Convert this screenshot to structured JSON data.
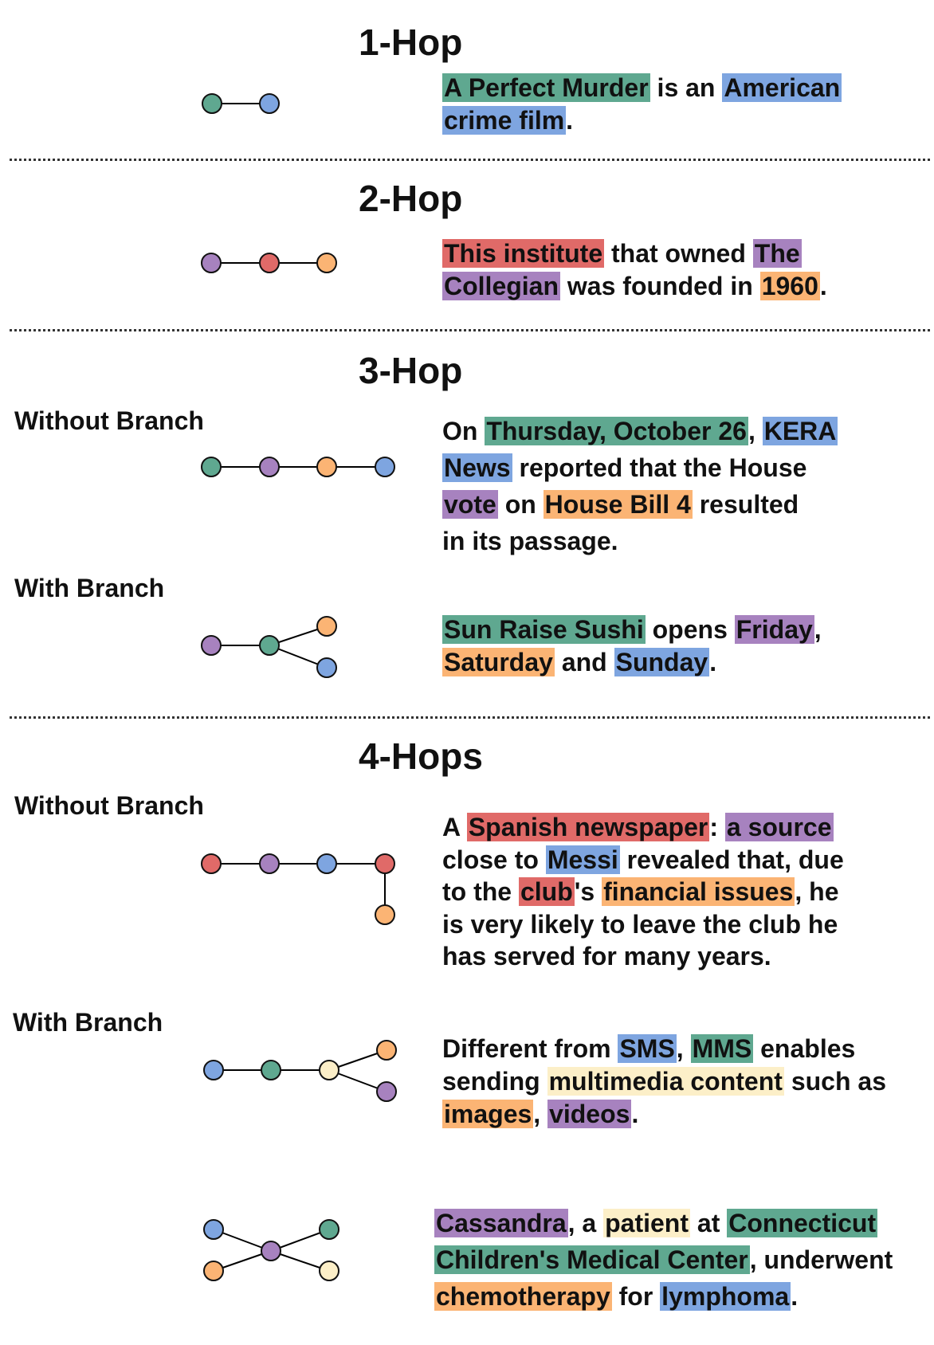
{
  "colors": {
    "green": "#5fa890",
    "blue": "#7ea5e0",
    "red": "#e06a68",
    "purple": "#a782bf",
    "orange": "#fbb474",
    "cream": "#fcefc8"
  },
  "sections": [
    {
      "heading": "1-Hop",
      "examples": [
        {
          "label": "",
          "graph": "chain",
          "nodes": [
            "green",
            "blue"
          ],
          "sentence_lines": [
            [
              {
                "t": "A Perfect Murder",
                "c": "green"
              },
              {
                "t": " is an "
              },
              {
                "t": "American",
                "c": "blue"
              }
            ],
            [
              {
                "t": "crime film",
                "c": "blue"
              },
              {
                "t": "."
              }
            ]
          ]
        }
      ]
    },
    {
      "heading": "2-Hop",
      "examples": [
        {
          "label": "",
          "graph": "chain",
          "nodes": [
            "purple",
            "red",
            "orange"
          ],
          "sentence_lines": [
            [
              {
                "t": "This institute",
                "c": "red"
              },
              {
                "t": " that owned "
              },
              {
                "t": "The",
                "c": "purple"
              }
            ],
            [
              {
                "t": "Collegian",
                "c": "purple"
              },
              {
                "t": " was founded in "
              },
              {
                "t": "1960",
                "c": "orange"
              },
              {
                "t": "."
              }
            ]
          ]
        }
      ]
    },
    {
      "heading": "3-Hop",
      "examples": [
        {
          "label": "Without Branch",
          "graph": "chain",
          "nodes": [
            "green",
            "purple",
            "orange",
            "blue"
          ],
          "sentence_lines": [
            [
              {
                "t": "On "
              },
              {
                "t": "Thursday, October 26",
                "c": "green"
              },
              {
                "t": ", "
              },
              {
                "t": "KERA",
                "c": "blue"
              }
            ],
            [
              {
                "t": "News",
                "c": "blue"
              },
              {
                "t": " reported that the House"
              }
            ],
            [
              {
                "t": "vote",
                "c": "purple"
              },
              {
                "t": " on "
              },
              {
                "t": "House Bill 4",
                "c": "orange"
              },
              {
                "t": " resulted"
              }
            ],
            [
              {
                "t": "in its passage."
              }
            ]
          ]
        },
        {
          "label": "With Branch",
          "graph": "branch",
          "nodes": [
            "purple",
            "green",
            "orange",
            "blue"
          ],
          "sentence_lines": [
            [
              {
                "t": "Sun Raise Sushi",
                "c": "green"
              },
              {
                "t": " opens "
              },
              {
                "t": "Friday",
                "c": "purple"
              },
              {
                "t": ","
              }
            ],
            [
              {
                "t": "Saturday",
                "c": "orange"
              },
              {
                "t": " and "
              },
              {
                "t": "Sunday",
                "c": "blue"
              },
              {
                "t": "."
              }
            ]
          ]
        }
      ]
    },
    {
      "heading": "4-Hops",
      "examples": [
        {
          "label": "Without Branch",
          "graph": "chain-bend",
          "nodes": [
            "red",
            "purple",
            "blue",
            "red",
            "orange"
          ],
          "sentence_lines": [
            [
              {
                "t": "A "
              },
              {
                "t": "Spanish newspaper",
                "c": "red"
              },
              {
                "t": ": "
              },
              {
                "t": "a source",
                "c": "purple"
              }
            ],
            [
              {
                "t": "close to "
              },
              {
                "t": "Messi",
                "c": "blue"
              },
              {
                "t": " revealed that, due"
              }
            ],
            [
              {
                "t": "to the "
              },
              {
                "t": "club",
                "c": "red"
              },
              {
                "t": "'s "
              },
              {
                "t": "financial issues",
                "c": "orange"
              },
              {
                "t": ", he"
              }
            ],
            [
              {
                "t": "is very likely to leave the club he"
              }
            ],
            [
              {
                "t": "has served for many years."
              }
            ]
          ]
        },
        {
          "label": "With Branch",
          "graph": "branch",
          "nodes": [
            "blue",
            "green",
            "cream",
            "orange",
            "purple"
          ],
          "sentence_lines": [
            [
              {
                "t": "Different from "
              },
              {
                "t": "SMS",
                "c": "blue"
              },
              {
                "t": ", "
              },
              {
                "t": "MMS",
                "c": "green"
              },
              {
                "t": " enables"
              }
            ],
            [
              {
                "t": "sending "
              },
              {
                "t": "multimedia content",
                "c": "cream"
              },
              {
                "t": " such as"
              }
            ],
            [
              {
                "t": "images",
                "c": "orange"
              },
              {
                "t": ", "
              },
              {
                "t": "videos",
                "c": "purple"
              },
              {
                "t": "."
              }
            ]
          ]
        },
        {
          "label": "",
          "graph": "cross",
          "nodes": [
            "blue",
            "orange",
            "purple",
            "green",
            "cream"
          ],
          "sentence_lines": [
            [
              {
                "t": "Cassandra",
                "c": "purple"
              },
              {
                "t": ", a "
              },
              {
                "t": "patient",
                "c": "cream"
              },
              {
                "t": " at "
              },
              {
                "t": "Connecticut",
                "c": "green"
              }
            ],
            [
              {
                "t": "Children's Medical Center",
                "c": "green"
              },
              {
                "t": ", underwent"
              }
            ],
            [
              {
                "t": "chemotherapy",
                "c": "orange"
              },
              {
                "t": " for "
              },
              {
                "t": "lymphoma",
                "c": "blue"
              },
              {
                "t": "."
              }
            ]
          ]
        }
      ]
    }
  ]
}
